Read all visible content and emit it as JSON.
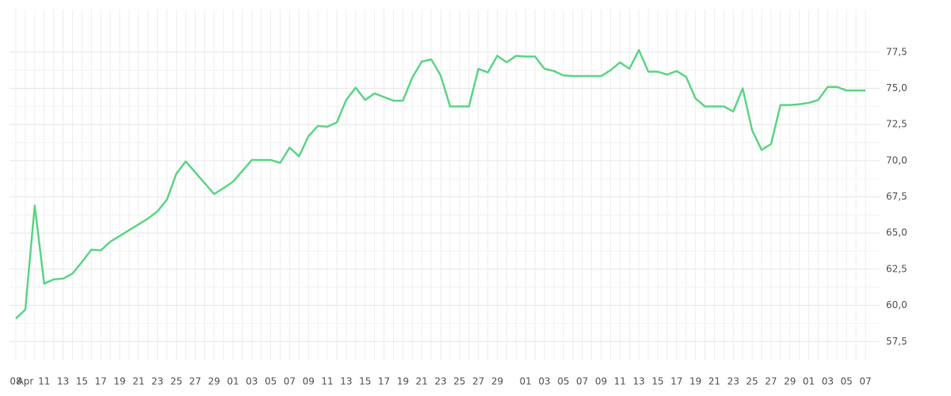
{
  "chart_data": {
    "type": "line",
    "categories": [
      "08",
      "Apr",
      null,
      "11",
      null,
      "13",
      null,
      "15",
      null,
      "17",
      null,
      "19",
      null,
      "21",
      null,
      "23",
      null,
      "25",
      null,
      "27",
      null,
      "29",
      null,
      "01",
      null,
      "03",
      null,
      "05",
      null,
      "07",
      null,
      "09",
      null,
      "11",
      null,
      "13",
      null,
      "15",
      null,
      "17",
      null,
      "19",
      null,
      "21",
      null,
      "23",
      null,
      "25",
      null,
      "27",
      null,
      "29",
      null,
      null,
      "01",
      null,
      "03",
      null,
      "05",
      null,
      "07",
      null,
      "09",
      null,
      "11",
      null,
      "13",
      null,
      "15",
      null,
      "17",
      null,
      "19",
      null,
      "21",
      null,
      "23",
      null,
      "25",
      null,
      "27",
      null,
      "29",
      null,
      "01",
      null,
      "03",
      null,
      "05",
      null,
      "07"
    ],
    "values": [
      59.1,
      59.7,
      66.9,
      61.5,
      61.8,
      61.85,
      62.2,
      63.0,
      63.85,
      63.8,
      64.4,
      64.8,
      65.2,
      65.6,
      66.0,
      66.5,
      67.3,
      69.1,
      69.95,
      69.2,
      68.45,
      67.7,
      68.1,
      68.55,
      69.3,
      70.05,
      70.05,
      70.05,
      69.85,
      70.9,
      70.3,
      71.7,
      72.4,
      72.35,
      72.65,
      74.2,
      75.05,
      74.2,
      74.65,
      74.4,
      74.15,
      74.15,
      75.75,
      76.85,
      77.0,
      75.9,
      73.75,
      73.75,
      73.75,
      76.35,
      76.1,
      77.25,
      76.8,
      77.25,
      77.2,
      77.2,
      76.35,
      76.2,
      75.9,
      75.85,
      75.85,
      75.85,
      75.85,
      76.25,
      76.8,
      76.35,
      77.65,
      76.15,
      76.15,
      75.95,
      76.2,
      75.8,
      74.3,
      73.75,
      73.75,
      73.75,
      73.4,
      75.0,
      72.1,
      70.75,
      71.15,
      73.85,
      73.85,
      73.9,
      74.0,
      74.2,
      75.1,
      75.1,
      74.85,
      74.85,
      74.85
    ],
    "color": "#5cd685",
    "ylim": [
      56.2,
      80.45
    ],
    "yticks": [
      {
        "value": 57.5,
        "label": "57,5"
      },
      {
        "value": 60,
        "label": "60,0"
      },
      {
        "value": 62.5,
        "label": "62,5"
      },
      {
        "value": 65,
        "label": "65,0"
      },
      {
        "value": 67.5,
        "label": "67,5"
      },
      {
        "value": 70,
        "label": "70,0"
      },
      {
        "value": 72.5,
        "label": "72,5"
      },
      {
        "value": 75,
        "label": "75,0"
      },
      {
        "value": 77.5,
        "label": "77,5"
      }
    ],
    "grid": true
  }
}
